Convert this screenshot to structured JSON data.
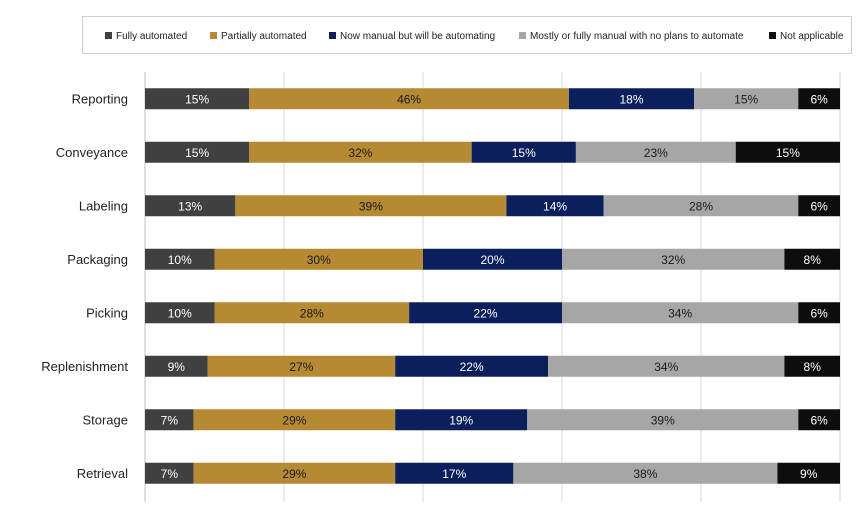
{
  "chart_data": {
    "type": "bar",
    "orientation": "horizontal",
    "stacked": true,
    "normalized": true,
    "title": "",
    "xlabel": "",
    "ylabel": "",
    "xlim": [
      0,
      100
    ],
    "grid": "vertical",
    "legend_position": "top",
    "categories": [
      "Reporting",
      "Conveyance",
      "Labeling",
      "Packaging",
      "Picking",
      "Replenishment",
      "Storage",
      "Retrieval"
    ],
    "series": [
      {
        "name": "Fully automated",
        "color": "#404040",
        "values": [
          15,
          15,
          13,
          10,
          10,
          9,
          7,
          7
        ],
        "labels": [
          "15%",
          "15%",
          "13%",
          "10%",
          "10%",
          "9%",
          "7%",
          "7%"
        ]
      },
      {
        "name": "Partially automated",
        "color": "#B58A33",
        "values": [
          46,
          32,
          39,
          30,
          28,
          27,
          29,
          29
        ],
        "labels": [
          "46%",
          "32%",
          "39%",
          "30%",
          "28%",
          "27%",
          "29%",
          "29%"
        ]
      },
      {
        "name": "Now manual but will be automating",
        "color": "#0B1F5C",
        "values": [
          18,
          15,
          14,
          20,
          22,
          22,
          19,
          17
        ],
        "labels": [
          "18%",
          "15%",
          "14%",
          "20%",
          "22%",
          "22%",
          "19%",
          "17%"
        ]
      },
      {
        "name": "Mostly or fully manual with no plans to automate",
        "color": "#A6A6A6",
        "values": [
          15,
          23,
          28,
          32,
          34,
          34,
          39,
          38
        ],
        "labels": [
          "15%",
          "23%",
          "28%",
          "32%",
          "34%",
          "34%",
          "39%",
          "38%"
        ]
      },
      {
        "name": "Not applicable",
        "color": "#0D0D0D",
        "values": [
          6,
          15,
          6,
          8,
          6,
          8,
          6,
          9
        ],
        "labels": [
          "6%",
          "15%",
          "6%",
          "8%",
          "6%",
          "8%",
          "6%",
          "9%"
        ]
      }
    ]
  }
}
